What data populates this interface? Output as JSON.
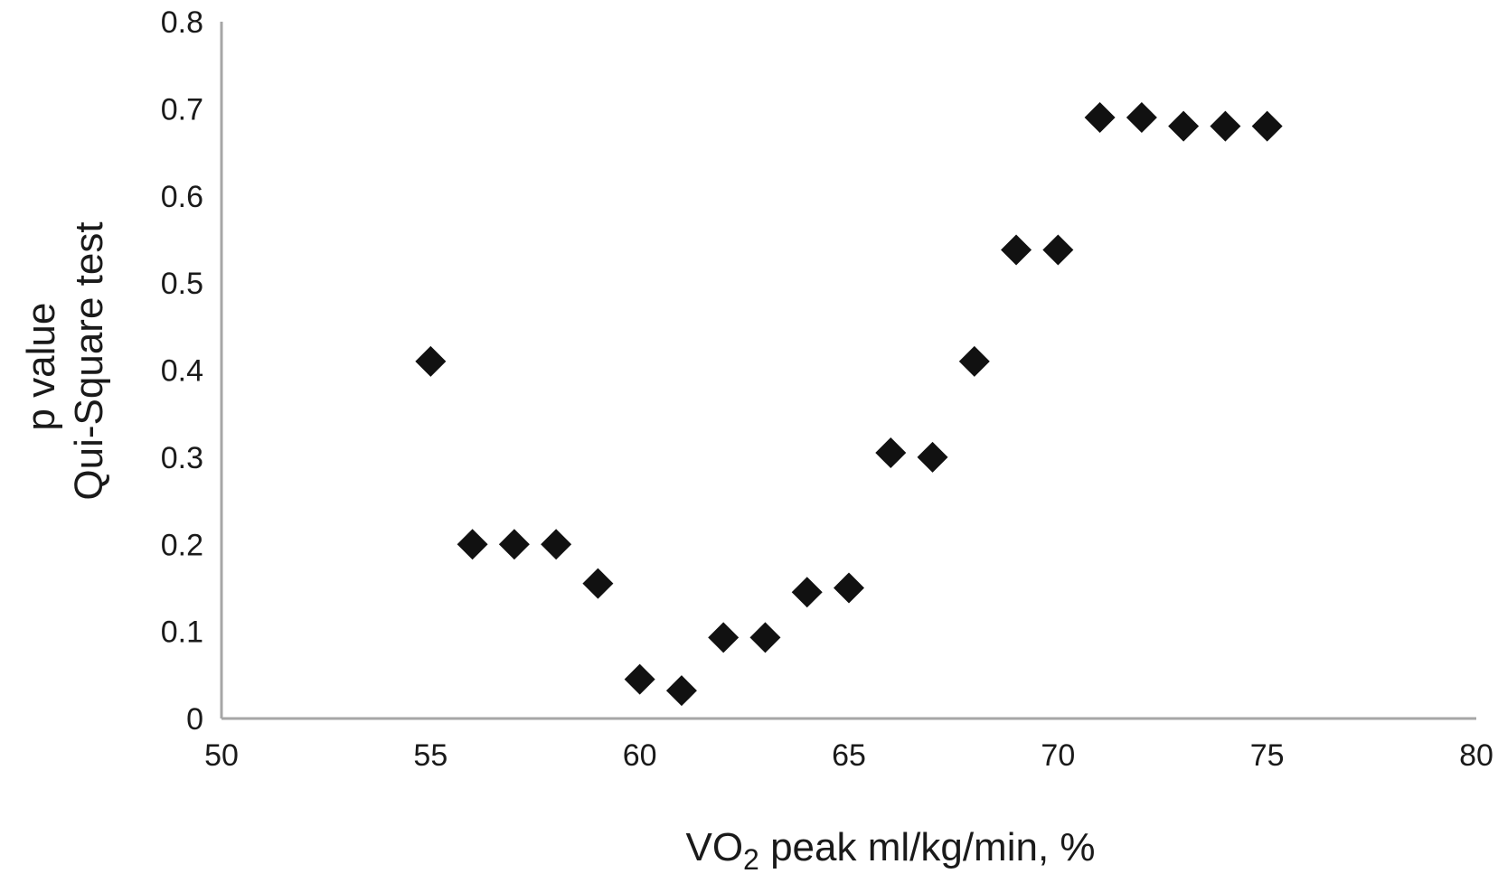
{
  "chart_data": {
    "type": "scatter",
    "marker": "diamond",
    "colors": {
      "marker": "#111111",
      "axis": "#a6a6a6",
      "text": "#1a1a1a"
    },
    "xlabel": {
      "prefix": "VO",
      "subscript": "2",
      "suffix": " peak ml/kg/min, %"
    },
    "ylabel_lines": [
      "p value",
      "Qui-Square test"
    ],
    "xlim": [
      50,
      80
    ],
    "ylim": [
      0,
      0.8
    ],
    "xticks": [
      "50",
      "55",
      "60",
      "65",
      "70",
      "75",
      "80"
    ],
    "yticks": [
      "0",
      "0.1",
      "0.2",
      "0.3",
      "0.4",
      "0.5",
      "0.6",
      "0.7",
      "0.8"
    ],
    "grid": false,
    "legend": "none",
    "points": [
      {
        "x": 55,
        "y": 0.41
      },
      {
        "x": 56,
        "y": 0.2
      },
      {
        "x": 57,
        "y": 0.2
      },
      {
        "x": 58,
        "y": 0.2
      },
      {
        "x": 59,
        "y": 0.155
      },
      {
        "x": 60,
        "y": 0.045
      },
      {
        "x": 61,
        "y": 0.032
      },
      {
        "x": 62,
        "y": 0.093
      },
      {
        "x": 63,
        "y": 0.093
      },
      {
        "x": 64,
        "y": 0.145
      },
      {
        "x": 65,
        "y": 0.15
      },
      {
        "x": 66,
        "y": 0.305
      },
      {
        "x": 67,
        "y": 0.3
      },
      {
        "x": 68,
        "y": 0.41
      },
      {
        "x": 69,
        "y": 0.538
      },
      {
        "x": 70,
        "y": 0.538
      },
      {
        "x": 71,
        "y": 0.69
      },
      {
        "x": 72,
        "y": 0.69
      },
      {
        "x": 73,
        "y": 0.68
      },
      {
        "x": 74,
        "y": 0.68
      },
      {
        "x": 75,
        "y": 0.68
      }
    ]
  }
}
